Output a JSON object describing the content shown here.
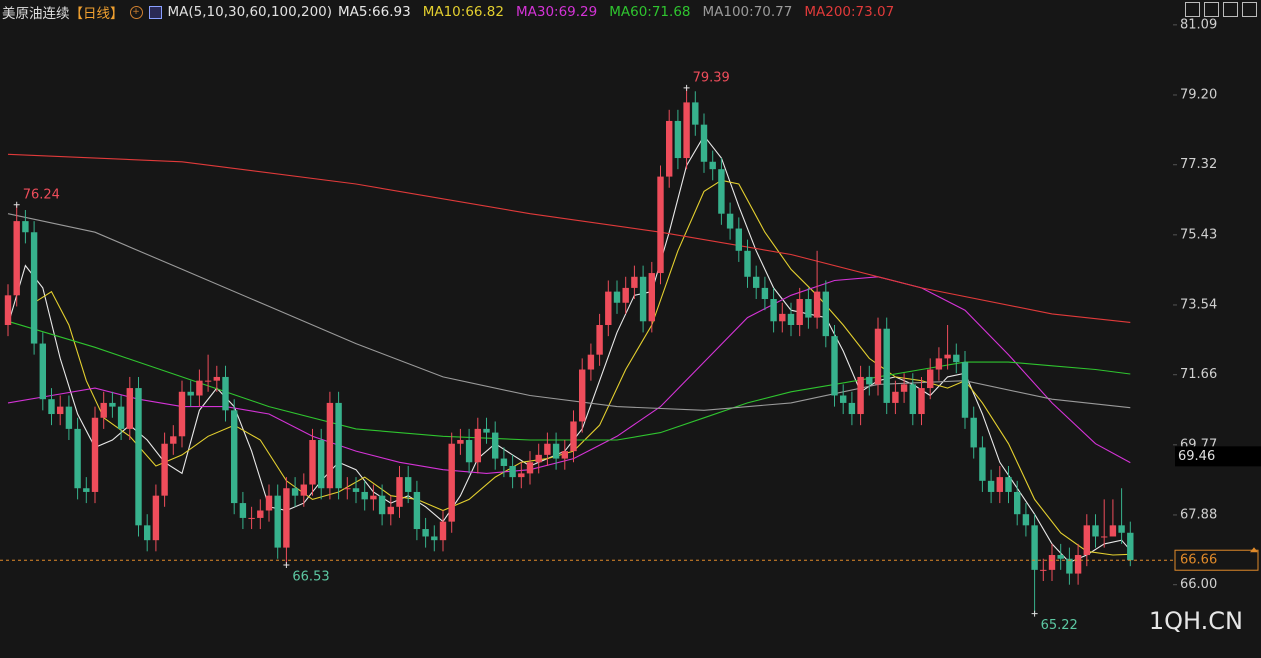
{
  "chart_data": {
    "type": "candlestick",
    "title": "美原油连续",
    "period": "【日线】",
    "indicator": "MA(5,10,30,60,100,200)",
    "up_color": "#ee4d5b",
    "down_color": "#37b28d",
    "ylim": [
      64.24,
      81.76
    ],
    "yticks": [
      81.09,
      {
        "value": 79.2,
        "label": "79.20"
      },
      77.32,
      75.43,
      73.54,
      71.66,
      69.77,
      67.88,
      {
        "value": 66.0,
        "label": "66.00"
      }
    ],
    "marker_price": 69.46,
    "watermark": "1QH.CN",
    "ohlc": [
      [
        73.0,
        74.1,
        72.7,
        73.8
      ],
      [
        73.8,
        76.24,
        73.5,
        75.8
      ],
      [
        75.8,
        76.1,
        75.2,
        75.5
      ],
      [
        75.5,
        75.8,
        72.2,
        72.5
      ],
      [
        72.5,
        72.8,
        70.7,
        71.0
      ],
      [
        71.0,
        71.3,
        70.3,
        70.6
      ],
      [
        70.6,
        71.1,
        70.3,
        70.8
      ],
      [
        70.8,
        71.1,
        69.9,
        70.2
      ],
      [
        70.2,
        70.5,
        68.3,
        68.6
      ],
      [
        68.6,
        68.9,
        68.2,
        68.5
      ],
      [
        68.5,
        70.8,
        68.2,
        70.5
      ],
      [
        70.5,
        71.2,
        70.2,
        70.9
      ],
      [
        70.9,
        71.2,
        70.5,
        70.8
      ],
      [
        70.8,
        71.1,
        69.9,
        70.2
      ],
      [
        70.2,
        71.6,
        69.9,
        71.3
      ],
      [
        71.3,
        71.6,
        67.3,
        67.6
      ],
      [
        67.6,
        67.9,
        66.9,
        67.2
      ],
      [
        67.2,
        68.7,
        66.9,
        68.4
      ],
      [
        68.4,
        70.1,
        68.1,
        69.8
      ],
      [
        69.8,
        70.3,
        69.5,
        70.0
      ],
      [
        70.0,
        71.5,
        69.7,
        71.2
      ],
      [
        71.2,
        71.5,
        70.8,
        71.1
      ],
      [
        71.1,
        71.8,
        70.8,
        71.5
      ],
      [
        71.5,
        72.2,
        71.2,
        71.5
      ],
      [
        71.5,
        71.9,
        71.2,
        71.6
      ],
      [
        71.6,
        71.9,
        70.4,
        70.7
      ],
      [
        70.7,
        71.0,
        67.9,
        68.2
      ],
      [
        68.2,
        68.5,
        67.5,
        67.8
      ],
      [
        67.8,
        68.1,
        67.5,
        67.8
      ],
      [
        67.8,
        68.3,
        67.5,
        68.0
      ],
      [
        68.0,
        68.7,
        67.7,
        68.4
      ],
      [
        68.4,
        68.7,
        66.7,
        67.0
      ],
      [
        67.0,
        68.9,
        66.53,
        68.6
      ],
      [
        68.6,
        68.9,
        68.1,
        68.4
      ],
      [
        68.4,
        69.0,
        68.1,
        68.7
      ],
      [
        68.7,
        70.2,
        68.4,
        69.9
      ],
      [
        69.9,
        70.2,
        68.3,
        68.6
      ],
      [
        68.6,
        71.2,
        68.3,
        70.9
      ],
      [
        70.9,
        71.2,
        68.3,
        68.6
      ],
      [
        68.6,
        68.9,
        68.3,
        68.6
      ],
      [
        68.6,
        68.9,
        68.2,
        68.5
      ],
      [
        68.5,
        68.8,
        68.0,
        68.3
      ],
      [
        68.3,
        68.7,
        68.0,
        68.4
      ],
      [
        68.4,
        68.7,
        67.6,
        67.9
      ],
      [
        67.9,
        68.4,
        67.6,
        68.1
      ],
      [
        68.1,
        69.2,
        67.8,
        68.9
      ],
      [
        68.9,
        69.2,
        68.2,
        68.5
      ],
      [
        68.5,
        68.8,
        67.2,
        67.5
      ],
      [
        67.5,
        67.8,
        67.0,
        67.3
      ],
      [
        67.3,
        67.6,
        66.9,
        67.2
      ],
      [
        67.2,
        68.0,
        66.9,
        67.7
      ],
      [
        67.7,
        70.1,
        67.4,
        69.8
      ],
      [
        69.8,
        70.2,
        69.5,
        69.9
      ],
      [
        69.9,
        70.2,
        69.0,
        69.3
      ],
      [
        69.3,
        70.5,
        69.0,
        70.2
      ],
      [
        70.2,
        70.5,
        69.8,
        70.1
      ],
      [
        70.1,
        70.4,
        69.1,
        69.4
      ],
      [
        69.4,
        69.7,
        68.9,
        69.2
      ],
      [
        69.2,
        69.5,
        68.6,
        68.9
      ],
      [
        68.9,
        69.3,
        68.6,
        69.0
      ],
      [
        69.0,
        69.6,
        68.7,
        69.3
      ],
      [
        69.3,
        69.8,
        69.0,
        69.5
      ],
      [
        69.5,
        70.1,
        69.2,
        69.8
      ],
      [
        69.8,
        70.1,
        69.1,
        69.4
      ],
      [
        69.4,
        69.9,
        69.1,
        69.6
      ],
      [
        69.6,
        70.7,
        69.3,
        70.4
      ],
      [
        70.4,
        72.1,
        70.1,
        71.8
      ],
      [
        71.8,
        72.5,
        71.5,
        72.2
      ],
      [
        72.2,
        73.3,
        71.9,
        73.0
      ],
      [
        73.0,
        74.2,
        72.7,
        73.9
      ],
      [
        73.9,
        74.2,
        73.3,
        73.6
      ],
      [
        73.6,
        74.3,
        73.3,
        74.0
      ],
      [
        74.0,
        74.6,
        73.7,
        74.3
      ],
      [
        74.3,
        74.6,
        72.8,
        73.1
      ],
      [
        73.1,
        74.7,
        72.8,
        74.4
      ],
      [
        74.4,
        77.3,
        74.1,
        77.0
      ],
      [
        77.0,
        78.8,
        76.7,
        78.5
      ],
      [
        78.5,
        78.8,
        77.2,
        77.5
      ],
      [
        77.5,
        79.39,
        77.2,
        79.0
      ],
      [
        79.0,
        79.3,
        78.1,
        78.4
      ],
      [
        78.4,
        78.7,
        77.1,
        77.4
      ],
      [
        77.4,
        77.7,
        76.9,
        77.2
      ],
      [
        77.2,
        77.5,
        75.7,
        76.0
      ],
      [
        76.0,
        76.3,
        75.3,
        75.6
      ],
      [
        75.6,
        75.9,
        74.7,
        75.0
      ],
      [
        75.0,
        75.3,
        74.0,
        74.3
      ],
      [
        74.3,
        74.6,
        73.7,
        74.0
      ],
      [
        74.0,
        74.3,
        73.4,
        73.7
      ],
      [
        73.7,
        74.0,
        72.8,
        73.1
      ],
      [
        73.1,
        73.6,
        72.8,
        73.3
      ],
      [
        73.3,
        73.6,
        72.7,
        73.0
      ],
      [
        73.0,
        74.0,
        72.7,
        73.7
      ],
      [
        73.7,
        74.0,
        72.9,
        73.2
      ],
      [
        73.2,
        75.0,
        72.9,
        73.9
      ],
      [
        73.9,
        74.2,
        72.4,
        72.7
      ],
      [
        72.7,
        73.0,
        70.8,
        71.1
      ],
      [
        71.1,
        71.4,
        70.6,
        70.9
      ],
      [
        70.9,
        71.2,
        70.3,
        70.6
      ],
      [
        70.6,
        71.9,
        70.3,
        71.6
      ],
      [
        71.6,
        71.9,
        71.1,
        71.4
      ],
      [
        71.4,
        73.2,
        71.1,
        72.9
      ],
      [
        72.9,
        73.2,
        70.6,
        70.9
      ],
      [
        70.9,
        71.5,
        70.6,
        71.2
      ],
      [
        71.2,
        71.7,
        70.9,
        71.4
      ],
      [
        71.4,
        71.7,
        70.3,
        70.6
      ],
      [
        70.6,
        71.6,
        70.3,
        71.3
      ],
      [
        71.3,
        72.1,
        71.0,
        71.8
      ],
      [
        71.8,
        72.4,
        71.5,
        72.1
      ],
      [
        72.1,
        73.0,
        71.8,
        72.2
      ],
      [
        72.2,
        72.5,
        71.7,
        72.0
      ],
      [
        72.0,
        72.3,
        70.2,
        70.5
      ],
      [
        70.5,
        70.8,
        69.4,
        69.7
      ],
      [
        69.7,
        70.0,
        68.5,
        68.8
      ],
      [
        68.8,
        69.1,
        68.2,
        68.5
      ],
      [
        68.5,
        69.2,
        68.2,
        68.9
      ],
      [
        68.9,
        69.2,
        68.2,
        68.5
      ],
      [
        68.5,
        68.8,
        67.6,
        67.9
      ],
      [
        67.9,
        68.2,
        67.3,
        67.6
      ],
      [
        67.6,
        67.9,
        65.22,
        66.4
      ],
      [
        66.4,
        66.7,
        66.1,
        66.4
      ],
      [
        66.4,
        67.1,
        66.1,
        66.8
      ],
      [
        66.8,
        67.1,
        66.4,
        66.7
      ],
      [
        66.7,
        67.0,
        66.0,
        66.3
      ],
      [
        66.3,
        67.1,
        66.0,
        66.8
      ],
      [
        66.8,
        67.9,
        66.5,
        67.6
      ],
      [
        67.6,
        67.9,
        67.0,
        67.3
      ],
      [
        67.3,
        68.3,
        67.0,
        67.3
      ],
      [
        67.3,
        68.3,
        67.3,
        67.6
      ],
      [
        67.6,
        68.6,
        67.1,
        67.4
      ],
      [
        67.4,
        67.7,
        66.5,
        66.66
      ]
    ],
    "ma": [
      {
        "name": "MA5:66.93",
        "color": "#e8e8e8",
        "x": [
          0,
          2,
          4,
          6,
          8,
          10,
          12,
          14,
          16,
          18,
          20,
          22,
          24,
          26,
          28,
          30,
          32,
          34,
          36,
          38,
          40,
          42,
          44,
          46,
          48,
          50,
          52,
          54,
          56,
          58,
          60,
          62,
          64,
          66,
          68,
          70,
          72,
          74,
          76,
          78,
          80,
          82,
          84,
          86,
          88,
          90,
          92,
          94,
          96,
          98,
          100,
          102,
          104,
          106,
          108,
          110,
          112,
          114,
          116,
          118,
          120,
          122,
          124,
          126,
          128,
          129
        ],
        "values": [
          73.0,
          74.6,
          74.0,
          72.1,
          70.6,
          69.7,
          69.9,
          70.3,
          69.9,
          69.3,
          69.0,
          70.7,
          71.3,
          70.8,
          69.6,
          68.1,
          68.0,
          68.2,
          68.8,
          69.3,
          69.1,
          68.5,
          68.2,
          68.4,
          68.1,
          67.7,
          68.4,
          69.4,
          69.8,
          69.5,
          69.2,
          69.4,
          69.6,
          70.2,
          71.5,
          72.8,
          73.8,
          73.9,
          75.5,
          77.3,
          78.1,
          77.5,
          76.2,
          75.0,
          74.0,
          73.4,
          73.3,
          73.2,
          72.3,
          71.2,
          71.5,
          71.6,
          71.4,
          71.1,
          71.6,
          71.7,
          70.6,
          69.3,
          68.6,
          67.9,
          67.1,
          66.6,
          66.8,
          67.1,
          67.2,
          66.93
        ]
      },
      {
        "name": "MA10:66.82",
        "color": "#e3cf2f",
        "x": [
          3,
          5,
          7,
          9,
          11,
          14,
          17,
          20,
          23,
          26,
          29,
          32,
          35,
          38,
          41,
          44,
          47,
          50,
          53,
          56,
          59,
          62,
          65,
          68,
          71,
          74,
          77,
          80,
          82,
          84,
          87,
          90,
          93,
          96,
          99,
          102,
          105,
          108,
          110,
          112,
          115,
          118,
          121,
          124,
          127,
          129
        ],
        "values": [
          73.6,
          73.9,
          73.0,
          71.5,
          70.5,
          70.0,
          69.2,
          69.5,
          70.0,
          70.3,
          69.9,
          68.8,
          68.3,
          68.5,
          68.9,
          68.4,
          68.3,
          68.0,
          68.3,
          68.9,
          69.3,
          69.4,
          69.6,
          70.3,
          71.8,
          73.0,
          75.0,
          76.6,
          76.9,
          76.8,
          75.5,
          74.5,
          73.8,
          73.0,
          72.1,
          71.6,
          71.5,
          71.3,
          71.5,
          70.9,
          69.8,
          68.3,
          67.4,
          66.9,
          66.8,
          66.82
        ]
      },
      {
        "name": "MA30:69.29",
        "color": "#d433d6",
        "x": [
          0,
          5,
          10,
          15,
          20,
          25,
          30,
          35,
          40,
          45,
          50,
          55,
          60,
          65,
          70,
          75,
          80,
          85,
          90,
          95,
          100,
          105,
          110,
          115,
          120,
          125,
          129
        ],
        "values": [
          70.9,
          71.1,
          71.3,
          71.0,
          70.8,
          70.8,
          70.6,
          70.0,
          69.6,
          69.3,
          69.1,
          69.0,
          69.1,
          69.4,
          70.0,
          70.8,
          72.0,
          73.2,
          73.8,
          74.2,
          74.3,
          74.0,
          73.4,
          72.2,
          70.9,
          69.8,
          69.29
        ]
      },
      {
        "name": "MA60:71.68",
        "color": "#2fc42f",
        "x": [
          0,
          10,
          20,
          30,
          40,
          50,
          60,
          70,
          75,
          80,
          85,
          90,
          95,
          100,
          105,
          110,
          115,
          120,
          125,
          129
        ],
        "values": [
          73.1,
          72.4,
          71.6,
          70.8,
          70.2,
          70.0,
          69.9,
          69.9,
          70.1,
          70.5,
          70.9,
          71.2,
          71.4,
          71.6,
          71.8,
          72.0,
          72.0,
          71.9,
          71.8,
          71.68
        ]
      },
      {
        "name": "MA100:70.77",
        "color": "#9a9a9a",
        "x": [
          0,
          10,
          20,
          30,
          40,
          50,
          60,
          70,
          80,
          90,
          100,
          110,
          120,
          129
        ],
        "values": [
          76.0,
          75.5,
          74.5,
          73.5,
          72.5,
          71.6,
          71.1,
          70.8,
          70.7,
          70.9,
          71.4,
          71.5,
          71.0,
          70.77
        ]
      },
      {
        "name": "MA200:73.07",
        "color": "#e03a3a",
        "x": [
          0,
          20,
          40,
          60,
          75,
          90,
          105,
          120,
          129
        ],
        "values": [
          77.6,
          77.4,
          76.8,
          76.0,
          75.5,
          74.9,
          74.0,
          73.3,
          73.07
        ]
      }
    ]
  }
}
